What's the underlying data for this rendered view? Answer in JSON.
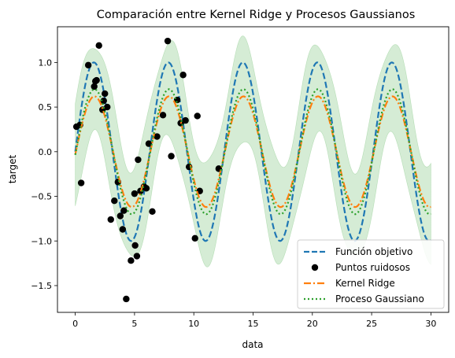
{
  "chart_data": {
    "type": "line",
    "title": "Comparación entre Kernel Ridge y Procesos Gaussianos",
    "xlabel": "data",
    "ylabel": "target",
    "xlim": [
      -1.5,
      31.5
    ],
    "ylim": [
      -1.8,
      1.4
    ],
    "xticks": [
      0,
      5,
      10,
      15,
      20,
      25,
      30
    ],
    "yticks": [
      -1.5,
      -1.0,
      -0.5,
      0.0,
      0.5,
      1.0
    ],
    "ytick_labels": [
      "−1.5",
      "−1.0",
      "−0.5",
      "0.0",
      "0.5",
      "1.0"
    ],
    "grid": false,
    "legend_position": "lower-right",
    "colors": {
      "target": "#1f77b4",
      "points": "#000000",
      "kernel_ridge": "#ff7f0e",
      "gp": "#2ca02c",
      "band": "#2ca02c"
    },
    "series": [
      {
        "name": "Función objetivo",
        "kind": "dashed-line",
        "function": "sin(x)",
        "x_range": [
          0,
          30
        ]
      },
      {
        "name": "Puntos ruidosos",
        "kind": "scatter",
        "x": [
          0.1,
          0.4,
          0.5,
          1.1,
          1.6,
          1.7,
          1.8,
          2.0,
          2.3,
          2.4,
          2.5,
          2.7,
          3.0,
          3.3,
          3.6,
          3.8,
          4.0,
          4.1,
          4.3,
          4.7,
          5.0,
          5.05,
          5.2,
          5.3,
          5.5,
          5.8,
          6.0,
          6.2,
          6.5,
          6.9,
          7.4,
          7.8,
          8.1,
          8.6,
          8.9,
          9.1,
          9.3,
          9.6,
          10.1,
          10.3,
          10.5,
          12.1
        ],
        "y": [
          0.28,
          0.3,
          -0.35,
          0.97,
          0.73,
          0.79,
          0.8,
          1.19,
          0.47,
          0.57,
          0.65,
          0.5,
          -0.76,
          -0.55,
          -0.34,
          -0.72,
          -0.87,
          -0.66,
          -1.65,
          -1.22,
          -0.47,
          -1.05,
          -1.17,
          -0.09,
          -0.44,
          -0.39,
          -0.41,
          0.09,
          -0.67,
          0.17,
          0.41,
          1.24,
          -0.05,
          0.58,
          0.32,
          0.86,
          0.35,
          -0.17,
          -0.97,
          0.4,
          -0.44,
          -0.19
        ]
      },
      {
        "name": "Kernel Ridge",
        "kind": "dashdot-line",
        "amplitude": 0.62,
        "phase_shift": 0.05,
        "x_range": [
          0,
          30
        ]
      },
      {
        "name": "Proceso Gaussiano",
        "kind": "dotted-line",
        "amplitude": 0.7,
        "phase_shift": 0.05,
        "band_halfwidth": [
          0.45,
          0.6
        ],
        "x_range": [
          0,
          30
        ]
      }
    ]
  }
}
